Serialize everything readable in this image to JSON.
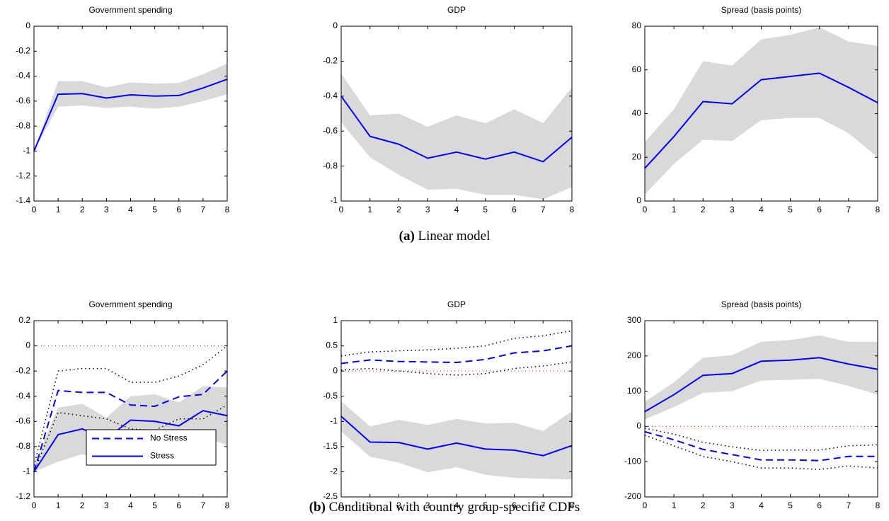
{
  "captions": [
    {
      "label": "(a)",
      "text": "Linear model"
    },
    {
      "label": "(b)",
      "text": "Conditional with country group-specific CDFs"
    }
  ],
  "chart_data": [
    {
      "type": "line",
      "title": "Government spending",
      "x": [
        0,
        1,
        2,
        3,
        4,
        5,
        6,
        7,
        8
      ],
      "xlim": [
        0,
        8
      ],
      "xticks": [
        0,
        1,
        2,
        3,
        4,
        5,
        6,
        7,
        8
      ],
      "ylim": [
        -1.4,
        0
      ],
      "yticks": [
        -1.4,
        -1.2,
        -1,
        -0.8,
        -0.6,
        -0.4,
        -0.2,
        0
      ],
      "series": [
        {
          "color": "#0000ff",
          "dash": "solid",
          "band": "fill",
          "band_color": "#d9d9d9",
          "values": [
            -1,
            -0.545,
            -0.54,
            -0.575,
            -0.55,
            -0.56,
            -0.555,
            -0.495,
            -0.425
          ],
          "upper": [
            -1,
            -0.44,
            -0.44,
            -0.49,
            -0.45,
            -0.46,
            -0.455,
            -0.385,
            -0.3
          ],
          "lower": [
            -1,
            -0.645,
            -0.635,
            -0.655,
            -0.645,
            -0.66,
            -0.645,
            -0.6,
            -0.545
          ]
        }
      ]
    },
    {
      "type": "line",
      "title": "GDP",
      "x": [
        0,
        1,
        2,
        3,
        4,
        5,
        6,
        7,
        8
      ],
      "xlim": [
        0,
        8
      ],
      "xticks": [
        0,
        1,
        2,
        3,
        4,
        5,
        6,
        7,
        8
      ],
      "ylim": [
        -1,
        0
      ],
      "yticks": [
        -1,
        -0.8,
        -0.6,
        -0.4,
        -0.2,
        0
      ],
      "series": [
        {
          "color": "#0000ff",
          "dash": "solid",
          "band": "fill",
          "band_color": "#d9d9d9",
          "values": [
            -0.4,
            -0.63,
            -0.675,
            -0.755,
            -0.72,
            -0.76,
            -0.72,
            -0.775,
            -0.635
          ],
          "upper": [
            -0.27,
            -0.51,
            -0.5,
            -0.575,
            -0.51,
            -0.555,
            -0.475,
            -0.555,
            -0.35
          ],
          "lower": [
            -0.55,
            -0.75,
            -0.85,
            -0.935,
            -0.93,
            -0.965,
            -0.965,
            -0.99,
            -0.92
          ]
        }
      ]
    },
    {
      "type": "line",
      "title": "Spread (basis points)",
      "x": [
        0,
        1,
        2,
        3,
        4,
        5,
        6,
        7,
        8
      ],
      "xlim": [
        0,
        8
      ],
      "xticks": [
        0,
        1,
        2,
        3,
        4,
        5,
        6,
        7,
        8
      ],
      "ylim": [
        0,
        80
      ],
      "yticks": [
        0,
        20,
        40,
        60,
        80
      ],
      "series": [
        {
          "color": "#0000ff",
          "dash": "solid",
          "band": "fill",
          "band_color": "#d9d9d9",
          "values": [
            15,
            29.5,
            45.5,
            44.5,
            55.5,
            57,
            58.5,
            52,
            45
          ],
          "upper": [
            27,
            42,
            64,
            62,
            74,
            76,
            79.5,
            73,
            71
          ],
          "lower": [
            3,
            17,
            28,
            27.5,
            37,
            38,
            38,
            31,
            20
          ]
        }
      ]
    },
    {
      "type": "line",
      "title": "Government spending",
      "x": [
        0,
        1,
        2,
        3,
        4,
        5,
        6,
        7,
        8
      ],
      "xlim": [
        0,
        8
      ],
      "xticks": [
        0,
        1,
        2,
        3,
        4,
        5,
        6,
        7,
        8
      ],
      "ylim": [
        -1.2,
        0.2
      ],
      "yticks": [
        -1.2,
        -1,
        -0.8,
        -0.6,
        -0.4,
        -0.2,
        0,
        0.2
      ],
      "hline": {
        "value": 0,
        "color": "#ff0000"
      },
      "legend": "lower left",
      "series": [
        {
          "name": "No Stress",
          "color": "#0000ff",
          "dash": "dashed",
          "band": "dotted",
          "band_color": "#000000",
          "values": [
            -1,
            -0.355,
            -0.37,
            -0.37,
            -0.47,
            -0.48,
            -0.405,
            -0.385,
            -0.2
          ],
          "upper": [
            -0.95,
            -0.2,
            -0.18,
            -0.18,
            -0.29,
            -0.29,
            -0.24,
            -0.15,
            0
          ],
          "lower": [
            -1,
            -0.53,
            -0.555,
            -0.58,
            -0.66,
            -0.67,
            -0.58,
            -0.58,
            -0.47
          ]
        },
        {
          "name": "Stress",
          "color": "#0000ff",
          "dash": "solid",
          "band": "fill",
          "band_color": "#d9d9d9",
          "values": [
            -1,
            -0.705,
            -0.66,
            -0.735,
            -0.59,
            -0.6,
            -0.635,
            -0.515,
            -0.555
          ],
          "upper": [
            -0.95,
            -0.49,
            -0.46,
            -0.57,
            -0.4,
            -0.385,
            -0.45,
            -0.32,
            -0.33
          ],
          "lower": [
            -1,
            -0.92,
            -0.86,
            -0.91,
            -0.775,
            -0.8,
            -0.8,
            -0.715,
            -0.79
          ]
        }
      ]
    },
    {
      "type": "line",
      "title": "GDP",
      "x": [
        0,
        1,
        2,
        3,
        4,
        5,
        6,
        7,
        8
      ],
      "xlim": [
        0,
        8
      ],
      "xticks": [
        0,
        1,
        2,
        3,
        4,
        5,
        6,
        7,
        8
      ],
      "ylim": [
        -2.5,
        1
      ],
      "yticks": [
        -2.5,
        -2,
        -1.5,
        -1,
        -0.5,
        0,
        0.5,
        1
      ],
      "hline": {
        "value": 0,
        "color": "#ff0000"
      },
      "series": [
        {
          "color": "#0000ff",
          "dash": "dashed",
          "band": "dotted",
          "band_color": "#000000",
          "values": [
            0.15,
            0.22,
            0.19,
            0.18,
            0.17,
            0.23,
            0.36,
            0.4,
            0.5
          ],
          "upper": [
            0.3,
            0.38,
            0.4,
            0.42,
            0.45,
            0.5,
            0.65,
            0.7,
            0.8
          ],
          "lower": [
            0.02,
            0.05,
            0,
            -0.05,
            -0.08,
            -0.05,
            0.05,
            0.1,
            0.18
          ]
        },
        {
          "color": "#0000ff",
          "dash": "solid",
          "band": "fill",
          "band_color": "#d9d9d9",
          "values": [
            -0.9,
            -1.41,
            -1.42,
            -1.55,
            -1.43,
            -1.55,
            -1.57,
            -1.68,
            -1.48
          ],
          "upper": [
            -0.6,
            -1.1,
            -0.97,
            -1.07,
            -0.95,
            -1.04,
            -1.03,
            -1.19,
            -0.8
          ],
          "lower": [
            -1.2,
            -1.7,
            -1.82,
            -2.01,
            -1.91,
            -2.06,
            -2.12,
            -2.14,
            -2.15
          ]
        }
      ]
    },
    {
      "type": "line",
      "title": "Spread (basis points)",
      "x": [
        0,
        1,
        2,
        3,
        4,
        5,
        6,
        7,
        8
      ],
      "xlim": [
        0,
        8
      ],
      "xticks": [
        0,
        1,
        2,
        3,
        4,
        5,
        6,
        7,
        8
      ],
      "ylim": [
        -200,
        300
      ],
      "yticks": [
        -200,
        -100,
        0,
        100,
        200,
        300
      ],
      "hline": {
        "value": 0,
        "color": "#ff0000"
      },
      "series": [
        {
          "color": "#0000ff",
          "dash": "dashed",
          "band": "dotted",
          "band_color": "#000000",
          "values": [
            -15,
            -38,
            -65,
            -80,
            -95,
            -95,
            -97,
            -85,
            -85
          ],
          "upper": [
            -5,
            -22,
            -45,
            -58,
            -68,
            -67,
            -67,
            -55,
            -52
          ],
          "lower": [
            -25,
            -55,
            -85,
            -100,
            -118,
            -118,
            -122,
            -112,
            -118
          ]
        },
        {
          "color": "#0000ff",
          "dash": "solid",
          "band": "fill",
          "band_color": "#d9d9d9",
          "values": [
            42,
            90,
            145,
            150,
            185,
            188,
            195,
            177,
            162
          ],
          "upper": [
            70,
            125,
            195,
            202,
            240,
            245,
            258,
            240,
            240
          ],
          "lower": [
            20,
            55,
            95,
            100,
            130,
            132,
            135,
            115,
            90
          ]
        }
      ]
    }
  ]
}
